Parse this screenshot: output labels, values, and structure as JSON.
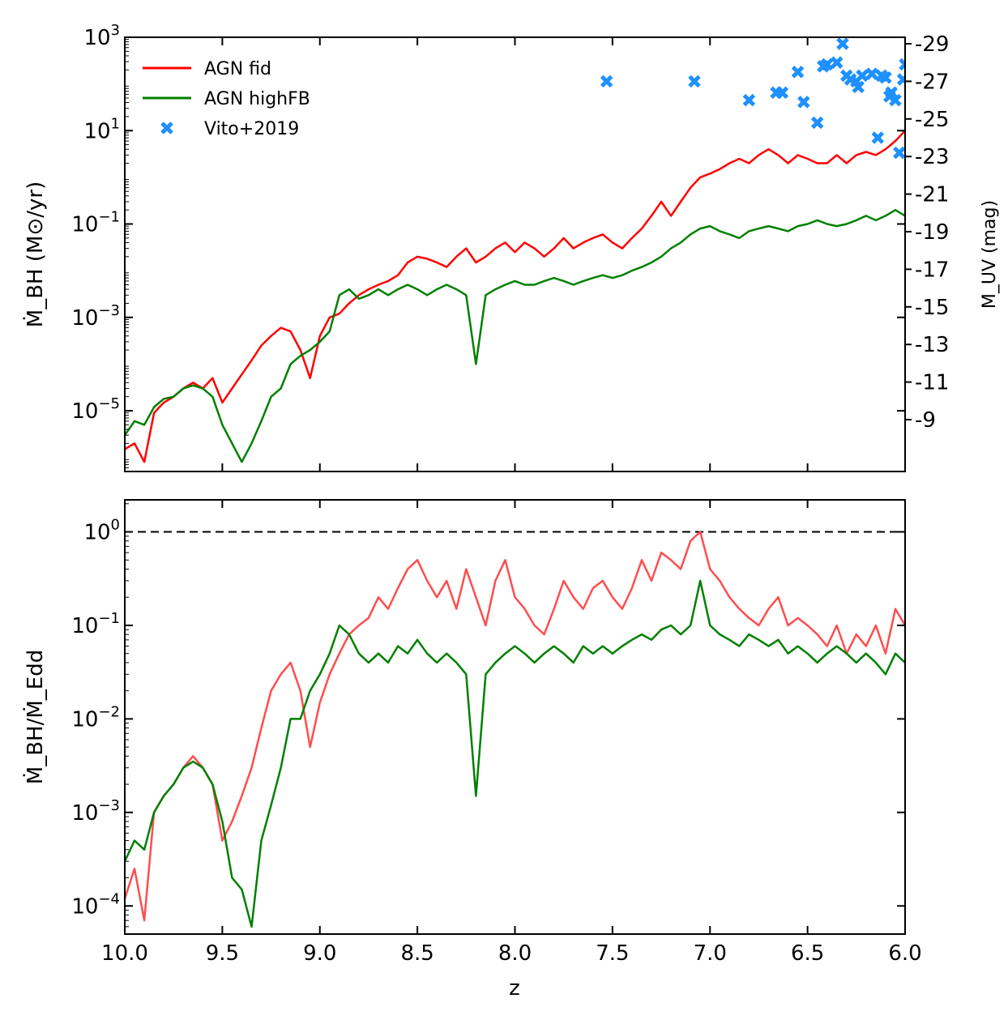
{
  "chart_data": [
    {
      "type": "line",
      "panel": "top",
      "xlabel": "",
      "ylabel": "Ṁ_BH (M⊙/yr)",
      "ylabel_right": "M_UV (mag)",
      "yscale": "log",
      "xlim": [
        10.0,
        6.0
      ],
      "ylim": [
        5e-07,
        1000
      ],
      "y_ticks": [
        {
          "label": "10",
          "exp": "3"
        },
        {
          "label": "10",
          "exp": "1"
        },
        {
          "label": "10",
          "exp": "-1"
        },
        {
          "label": "10",
          "exp": "-3"
        },
        {
          "label": "10",
          "exp": "-5"
        }
      ],
      "right_ticks": [
        "-29",
        "-27",
        "-25",
        "-23",
        "-21",
        "-19",
        "-17",
        "-15",
        "-13",
        "-11",
        "-9"
      ],
      "legend": {
        "placement": "top-left",
        "entries": [
          {
            "label": "AGN fid",
            "color": "#ff0000",
            "kind": "line"
          },
          {
            "label": "AGN highFB",
            "color": "#008000",
            "kind": "line"
          },
          {
            "label": "Vito+2019",
            "color": "#1e90ff",
            "kind": "marker"
          }
        ]
      },
      "series": [
        {
          "name": "AGN fid",
          "color": "#ff0000",
          "x": [
            10.0,
            9.95,
            9.9,
            9.85,
            9.8,
            9.75,
            9.7,
            9.65,
            9.6,
            9.55,
            9.5,
            9.45,
            9.4,
            9.35,
            9.3,
            9.25,
            9.2,
            9.15,
            9.1,
            9.05,
            9.0,
            8.95,
            8.9,
            8.85,
            8.8,
            8.75,
            8.7,
            8.65,
            8.6,
            8.55,
            8.5,
            8.45,
            8.4,
            8.35,
            8.3,
            8.25,
            8.2,
            8.15,
            8.1,
            8.05,
            8.0,
            7.95,
            7.9,
            7.85,
            7.8,
            7.75,
            7.7,
            7.65,
            7.6,
            7.55,
            7.5,
            7.45,
            7.4,
            7.35,
            7.3,
            7.25,
            7.2,
            7.15,
            7.1,
            7.05,
            7.0,
            6.95,
            6.9,
            6.85,
            6.8,
            6.75,
            6.7,
            6.65,
            6.6,
            6.55,
            6.5,
            6.45,
            6.4,
            6.35,
            6.3,
            6.25,
            6.2,
            6.15,
            6.1,
            6.05,
            6.0
          ],
          "y": [
            1.5e-06,
            2e-06,
            8e-07,
            9e-06,
            1.5e-05,
            2e-05,
            3e-05,
            4e-05,
            3e-05,
            5e-05,
            1.5e-05,
            3e-05,
            6e-05,
            0.00012,
            0.00025,
            0.0004,
            0.0006,
            0.0005,
            0.0002,
            5e-05,
            0.0004,
            0.001,
            0.0012,
            0.002,
            0.003,
            0.004,
            0.005,
            0.006,
            0.008,
            0.015,
            0.02,
            0.018,
            0.015,
            0.012,
            0.02,
            0.03,
            0.015,
            0.02,
            0.03,
            0.04,
            0.025,
            0.04,
            0.03,
            0.02,
            0.03,
            0.05,
            0.03,
            0.04,
            0.05,
            0.06,
            0.04,
            0.03,
            0.05,
            0.08,
            0.15,
            0.3,
            0.15,
            0.3,
            0.6,
            1.0,
            1.2,
            1.5,
            2.0,
            2.5,
            2.0,
            3.0,
            4.0,
            3.0,
            2.0,
            3.0,
            2.5,
            2.0,
            2.0,
            3.0,
            2.0,
            3.0,
            3.5,
            3.0,
            4.0,
            6.0,
            10.0
          ]
        },
        {
          "name": "AGN highFB",
          "color": "#008000",
          "x": [
            10.0,
            9.95,
            9.9,
            9.85,
            9.8,
            9.75,
            9.7,
            9.65,
            9.6,
            9.55,
            9.5,
            9.45,
            9.4,
            9.35,
            9.3,
            9.25,
            9.2,
            9.15,
            9.1,
            9.05,
            9.0,
            8.95,
            8.9,
            8.85,
            8.8,
            8.75,
            8.7,
            8.65,
            8.6,
            8.55,
            8.5,
            8.45,
            8.4,
            8.35,
            8.3,
            8.25,
            8.2,
            8.15,
            8.1,
            8.05,
            8.0,
            7.95,
            7.9,
            7.85,
            7.8,
            7.75,
            7.7,
            7.65,
            7.6,
            7.55,
            7.5,
            7.45,
            7.4,
            7.35,
            7.3,
            7.25,
            7.2,
            7.15,
            7.1,
            7.05,
            7.0,
            6.95,
            6.9,
            6.85,
            6.8,
            6.75,
            6.7,
            6.65,
            6.6,
            6.55,
            6.5,
            6.45,
            6.4,
            6.35,
            6.3,
            6.25,
            6.2,
            6.15,
            6.1,
            6.05,
            6.0
          ],
          "y": [
            3e-06,
            6e-06,
            5e-06,
            1.2e-05,
            1.8e-05,
            2e-05,
            3e-05,
            3.5e-05,
            3e-05,
            2e-05,
            5e-06,
            2e-06,
            8e-07,
            2e-06,
            6e-06,
            2e-05,
            3e-05,
            0.0001,
            0.00015,
            0.0002,
            0.0003,
            0.0005,
            0.003,
            0.004,
            0.0025,
            0.003,
            0.004,
            0.003,
            0.004,
            0.005,
            0.004,
            0.003,
            0.004,
            0.005,
            0.004,
            0.003,
            0.0001,
            0.003,
            0.004,
            0.005,
            0.006,
            0.005,
            0.005,
            0.006,
            0.007,
            0.006,
            0.005,
            0.006,
            0.007,
            0.008,
            0.007,
            0.008,
            0.01,
            0.012,
            0.015,
            0.02,
            0.03,
            0.04,
            0.06,
            0.08,
            0.09,
            0.07,
            0.06,
            0.05,
            0.07,
            0.08,
            0.09,
            0.08,
            0.07,
            0.09,
            0.1,
            0.12,
            0.1,
            0.09,
            0.1,
            0.12,
            0.15,
            0.12,
            0.15,
            0.2,
            0.15
          ]
        },
        {
          "name": "Vito+2019",
          "color": "#1e90ff",
          "kind": "scatter",
          "x": [
            7.53,
            7.08,
            6.8,
            6.66,
            6.63,
            6.55,
            6.52,
            6.45,
            6.42,
            6.4,
            6.35,
            6.32,
            6.3,
            6.28,
            6.25,
            6.24,
            6.22,
            6.17,
            6.14,
            6.12,
            6.1,
            6.08,
            6.07,
            6.05,
            6.03,
            6.01,
            6.0
          ],
          "y": [
            -27.0,
            -27.0,
            -26.0,
            -26.4,
            -26.4,
            -27.5,
            -25.9,
            -24.8,
            -27.8,
            -27.9,
            -28.0,
            -29.0,
            -27.3,
            -27.1,
            -27.0,
            -26.7,
            -27.3,
            -27.4,
            -24.0,
            -27.3,
            -27.2,
            -26.2,
            -26.4,
            -26.0,
            -23.2,
            -27.1,
            -27.9
          ]
        }
      ]
    },
    {
      "type": "line",
      "panel": "bottom",
      "xlabel": "z",
      "ylabel": "Ṁ_BH/Ṁ_Edd",
      "yscale": "log",
      "xlim": [
        10.0,
        6.0
      ],
      "ylim": [
        5e-05,
        2.2
      ],
      "x_ticks": [
        "10.0",
        "9.5",
        "9.0",
        "8.5",
        "8.0",
        "7.5",
        "7.0",
        "6.5",
        "6.0"
      ],
      "y_ticks": [
        {
          "label": "10",
          "exp": "0"
        },
        {
          "label": "10",
          "exp": "-1"
        },
        {
          "label": "10",
          "exp": "-2"
        },
        {
          "label": "10",
          "exp": "-3"
        },
        {
          "label": "10",
          "exp": "-4"
        }
      ],
      "reference_line": {
        "y": 1.0,
        "style": "dashed",
        "color": "#000000"
      },
      "series": [
        {
          "name": "AGN fid",
          "color": "#ff4d4d",
          "x": [
            10.0,
            9.95,
            9.9,
            9.85,
            9.8,
            9.75,
            9.7,
            9.65,
            9.6,
            9.55,
            9.5,
            9.45,
            9.4,
            9.35,
            9.3,
            9.25,
            9.2,
            9.15,
            9.1,
            9.05,
            9.0,
            8.95,
            8.9,
            8.85,
            8.8,
            8.75,
            8.7,
            8.65,
            8.6,
            8.55,
            8.5,
            8.45,
            8.4,
            8.35,
            8.3,
            8.25,
            8.2,
            8.15,
            8.1,
            8.05,
            8.0,
            7.95,
            7.9,
            7.85,
            7.8,
            7.75,
            7.7,
            7.65,
            7.6,
            7.55,
            7.5,
            7.45,
            7.4,
            7.35,
            7.3,
            7.25,
            7.2,
            7.15,
            7.1,
            7.05,
            7.0,
            6.95,
            6.9,
            6.85,
            6.8,
            6.75,
            6.7,
            6.65,
            6.6,
            6.55,
            6.5,
            6.45,
            6.4,
            6.35,
            6.3,
            6.25,
            6.2,
            6.15,
            6.1,
            6.05,
            6.0
          ],
          "y": [
            0.00012,
            0.00025,
            7e-05,
            0.001,
            0.0015,
            0.002,
            0.003,
            0.004,
            0.003,
            0.002,
            0.0005,
            0.0008,
            0.0015,
            0.003,
            0.008,
            0.02,
            0.03,
            0.04,
            0.02,
            0.005,
            0.015,
            0.03,
            0.05,
            0.08,
            0.1,
            0.12,
            0.2,
            0.15,
            0.25,
            0.4,
            0.5,
            0.3,
            0.2,
            0.3,
            0.15,
            0.4,
            0.2,
            0.1,
            0.3,
            0.5,
            0.2,
            0.15,
            0.1,
            0.08,
            0.15,
            0.3,
            0.2,
            0.15,
            0.25,
            0.3,
            0.2,
            0.15,
            0.25,
            0.5,
            0.3,
            0.6,
            0.5,
            0.4,
            0.8,
            1.0,
            0.4,
            0.3,
            0.2,
            0.15,
            0.12,
            0.1,
            0.15,
            0.2,
            0.1,
            0.12,
            0.1,
            0.08,
            0.06,
            0.1,
            0.05,
            0.08,
            0.06,
            0.1,
            0.05,
            0.15,
            0.1
          ]
        },
        {
          "name": "AGN highFB",
          "color": "#008000",
          "x": [
            10.0,
            9.95,
            9.9,
            9.85,
            9.8,
            9.75,
            9.7,
            9.65,
            9.6,
            9.55,
            9.5,
            9.45,
            9.4,
            9.35,
            9.3,
            9.25,
            9.2,
            9.15,
            9.1,
            9.05,
            9.0,
            8.95,
            8.9,
            8.85,
            8.8,
            8.75,
            8.7,
            8.65,
            8.6,
            8.55,
            8.5,
            8.45,
            8.4,
            8.35,
            8.3,
            8.25,
            8.2,
            8.15,
            8.1,
            8.05,
            8.0,
            7.95,
            7.9,
            7.85,
            7.8,
            7.75,
            7.7,
            7.65,
            7.6,
            7.55,
            7.5,
            7.45,
            7.4,
            7.35,
            7.3,
            7.25,
            7.2,
            7.15,
            7.1,
            7.05,
            7.0,
            6.95,
            6.9,
            6.85,
            6.8,
            6.75,
            6.7,
            6.65,
            6.6,
            6.55,
            6.5,
            6.45,
            6.4,
            6.35,
            6.3,
            6.25,
            6.2,
            6.15,
            6.1,
            6.05,
            6.0
          ],
          "y": [
            0.0003,
            0.0005,
            0.0004,
            0.001,
            0.0015,
            0.002,
            0.003,
            0.0035,
            0.003,
            0.002,
            0.0008,
            0.0002,
            0.00015,
            6e-05,
            0.0005,
            0.0012,
            0.003,
            0.01,
            0.01,
            0.02,
            0.03,
            0.05,
            0.1,
            0.08,
            0.05,
            0.04,
            0.05,
            0.04,
            0.06,
            0.05,
            0.07,
            0.05,
            0.04,
            0.05,
            0.04,
            0.03,
            0.0015,
            0.03,
            0.04,
            0.05,
            0.06,
            0.05,
            0.04,
            0.05,
            0.06,
            0.05,
            0.04,
            0.06,
            0.05,
            0.06,
            0.05,
            0.06,
            0.07,
            0.08,
            0.07,
            0.09,
            0.1,
            0.08,
            0.1,
            0.3,
            0.1,
            0.08,
            0.07,
            0.06,
            0.08,
            0.07,
            0.06,
            0.07,
            0.05,
            0.06,
            0.05,
            0.04,
            0.05,
            0.06,
            0.05,
            0.04,
            0.05,
            0.04,
            0.03,
            0.05,
            0.04
          ]
        }
      ]
    }
  ]
}
